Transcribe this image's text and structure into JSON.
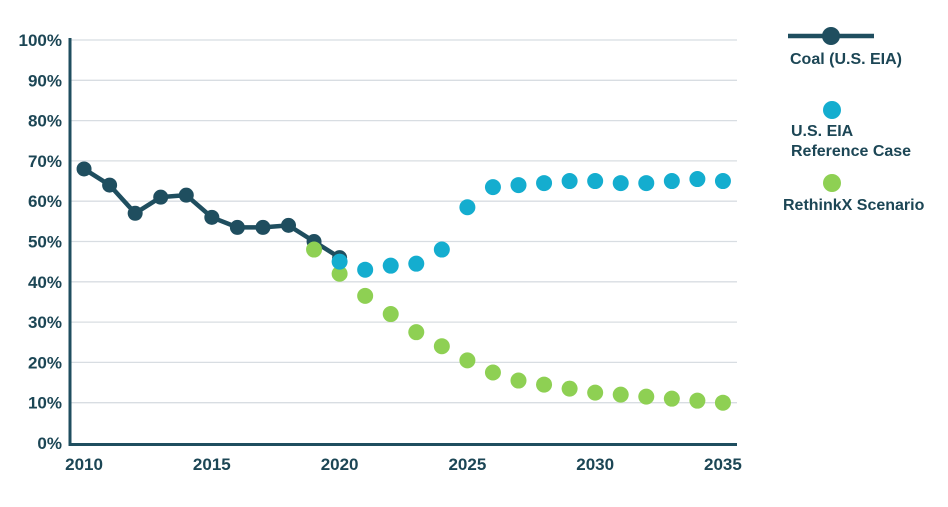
{
  "chart_data": {
    "type": "scatter",
    "title": "",
    "xlabel": "",
    "ylabel": "",
    "xlim": [
      2009.45,
      2035.55
    ],
    "ylim": [
      0,
      100
    ],
    "x_ticks": [
      2010,
      2015,
      2020,
      2025,
      2030,
      2035
    ],
    "x_tick_labels": [
      "2010",
      "2015",
      "2020",
      "2025",
      "2030",
      "2035"
    ],
    "y_ticks": [
      0,
      10,
      20,
      30,
      40,
      50,
      60,
      70,
      80,
      90,
      100
    ],
    "y_tick_labels": [
      "0%",
      "10%",
      "20%",
      "30%",
      "40%",
      "50%",
      "60%",
      "70%",
      "80%",
      "90%",
      "100%"
    ],
    "grid": "horizontal-only",
    "legend_position": "right-outside",
    "series": [
      {
        "name": "Coal (U.S. EIA)",
        "style": "line-with-markers",
        "color": "#1f4e5f",
        "x": [
          2010,
          2011,
          2012,
          2013,
          2014,
          2015,
          2016,
          2017,
          2018,
          2019,
          2020
        ],
        "y": [
          68,
          64,
          57,
          61,
          61.5,
          56,
          53.5,
          53.5,
          54,
          50,
          46
        ]
      },
      {
        "name": "U.S. EIA Reference Case",
        "style": "markers-only",
        "color": "#14adcf",
        "x": [
          2020,
          2021,
          2022,
          2023,
          2024,
          2025,
          2026,
          2027,
          2028,
          2029,
          2030,
          2031,
          2032,
          2033,
          2034,
          2035
        ],
        "y": [
          45,
          43,
          44,
          44.5,
          48,
          58.5,
          63.5,
          64,
          64.5,
          65,
          65,
          64.5,
          64.5,
          65,
          65.5,
          65
        ]
      },
      {
        "name": "RethinkX Scenario",
        "style": "markers-only",
        "color": "#8ed053",
        "x": [
          2019,
          2020,
          2021,
          2022,
          2023,
          2024,
          2025,
          2026,
          2027,
          2028,
          2029,
          2030,
          2031,
          2032,
          2033,
          2034,
          2035
        ],
        "y": [
          48,
          42,
          36.5,
          32,
          27.5,
          24,
          20.5,
          17.5,
          15.5,
          14.5,
          13.5,
          12.5,
          12,
          11.5,
          11,
          10.5,
          10
        ]
      }
    ]
  },
  "legend": {
    "items": [
      {
        "id": "coal",
        "label": "Coal (U.S. EIA)",
        "swatch": "line-dot"
      },
      {
        "id": "eia-reference",
        "label": "U.S. EIA\nReference Case",
        "swatch": "dot"
      },
      {
        "id": "rethinkx",
        "label": "RethinkX Scenario",
        "swatch": "dot"
      }
    ]
  },
  "colors": {
    "axis": "#1f4e5f",
    "gridline": "#d8dde2",
    "label_text": "#1c4655",
    "background": "#ffffff"
  }
}
